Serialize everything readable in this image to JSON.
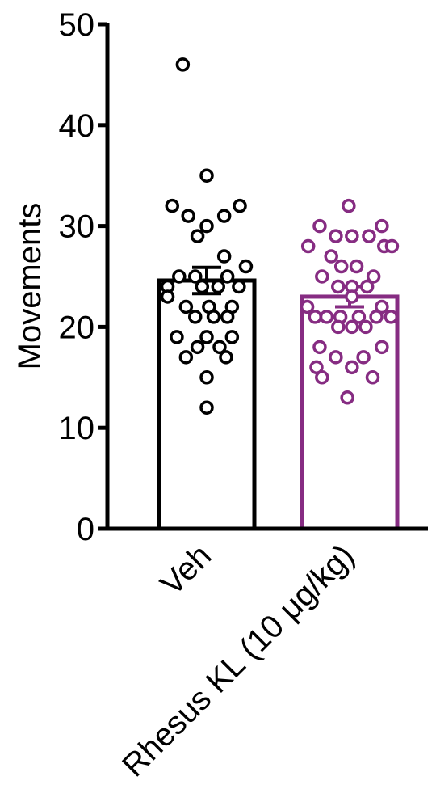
{
  "chart_data": {
    "type": "bar",
    "ylabel": "Movements",
    "ylim": [
      0,
      50
    ],
    "yticks": [
      0,
      10,
      20,
      30,
      40,
      50
    ],
    "ytick_labels": [
      "0",
      "10",
      "20",
      "30",
      "40",
      "50"
    ],
    "categories": [
      "Veh",
      "Rhesus KL (10 μg/kg)"
    ],
    "series": [
      {
        "category": "Veh",
        "mean": 24.6,
        "sem": 1.3,
        "color": "#000000",
        "points": [
          {
            "x": -0.52,
            "y": 46
          },
          {
            "x": 0,
            "y": 35
          },
          {
            "x": -0.75,
            "y": 32
          },
          {
            "x": 0.72,
            "y": 32
          },
          {
            "x": -0.4,
            "y": 31
          },
          {
            "x": 0.38,
            "y": 31
          },
          {
            "x": 0,
            "y": 30
          },
          {
            "x": -0.2,
            "y": 29
          },
          {
            "x": 0.38,
            "y": 27
          },
          {
            "x": 0.85,
            "y": 26
          },
          {
            "x": -0.6,
            "y": 25
          },
          {
            "x": -0.25,
            "y": 25
          },
          {
            "x": 0.45,
            "y": 25
          },
          {
            "x": -0.85,
            "y": 24
          },
          {
            "x": -0.1,
            "y": 24
          },
          {
            "x": 0.25,
            "y": 24
          },
          {
            "x": 0.7,
            "y": 24
          },
          {
            "x": -0.85,
            "y": 23
          },
          {
            "x": -0.45,
            "y": 22
          },
          {
            "x": 0.05,
            "y": 22
          },
          {
            "x": 0.55,
            "y": 22
          },
          {
            "x": -0.25,
            "y": 21
          },
          {
            "x": 0.15,
            "y": 21
          },
          {
            "x": 0.45,
            "y": 21
          },
          {
            "x": -0.65,
            "y": 19
          },
          {
            "x": 0,
            "y": 19
          },
          {
            "x": 0.55,
            "y": 19
          },
          {
            "x": -0.2,
            "y": 18
          },
          {
            "x": 0.28,
            "y": 18
          },
          {
            "x": -0.45,
            "y": 17
          },
          {
            "x": 0.42,
            "y": 17
          },
          {
            "x": 0,
            "y": 15
          },
          {
            "x": 0,
            "y": 12
          }
        ]
      },
      {
        "category": "Rhesus KL (10 μg/kg)",
        "mean": 23.0,
        "sem": 1.0,
        "color": "#862c82",
        "points": [
          {
            "x": -0.02,
            "y": 32
          },
          {
            "x": -0.65,
            "y": 30
          },
          {
            "x": 0.7,
            "y": 30
          },
          {
            "x": -0.3,
            "y": 29
          },
          {
            "x": 0.05,
            "y": 29
          },
          {
            "x": 0.42,
            "y": 29
          },
          {
            "x": -0.9,
            "y": 28
          },
          {
            "x": 0.75,
            "y": 28
          },
          {
            "x": 0.92,
            "y": 28
          },
          {
            "x": -0.4,
            "y": 27
          },
          {
            "x": -0.18,
            "y": 26
          },
          {
            "x": 0.15,
            "y": 26
          },
          {
            "x": -0.6,
            "y": 25
          },
          {
            "x": 0.52,
            "y": 25
          },
          {
            "x": -0.25,
            "y": 24
          },
          {
            "x": 0.05,
            "y": 24
          },
          {
            "x": 0.38,
            "y": 24
          },
          {
            "x": 0.05,
            "y": 23
          },
          {
            "x": -0.92,
            "y": 22
          },
          {
            "x": 0.7,
            "y": 22
          },
          {
            "x": -0.75,
            "y": 21
          },
          {
            "x": -0.5,
            "y": 21
          },
          {
            "x": -0.2,
            "y": 21
          },
          {
            "x": 0.2,
            "y": 21
          },
          {
            "x": 0.58,
            "y": 21
          },
          {
            "x": 0.9,
            "y": 21
          },
          {
            "x": -0.25,
            "y": 20
          },
          {
            "x": 0.05,
            "y": 20
          },
          {
            "x": 0.35,
            "y": 20
          },
          {
            "x": -0.65,
            "y": 18
          },
          {
            "x": 0.7,
            "y": 18
          },
          {
            "x": -0.3,
            "y": 17
          },
          {
            "x": 0.3,
            "y": 17
          },
          {
            "x": -0.72,
            "y": 16
          },
          {
            "x": 0.05,
            "y": 16
          },
          {
            "x": -0.6,
            "y": 15
          },
          {
            "x": 0.5,
            "y": 15
          },
          {
            "x": -0.05,
            "y": 13
          }
        ]
      }
    ],
    "grid": false,
    "legend": "none"
  }
}
